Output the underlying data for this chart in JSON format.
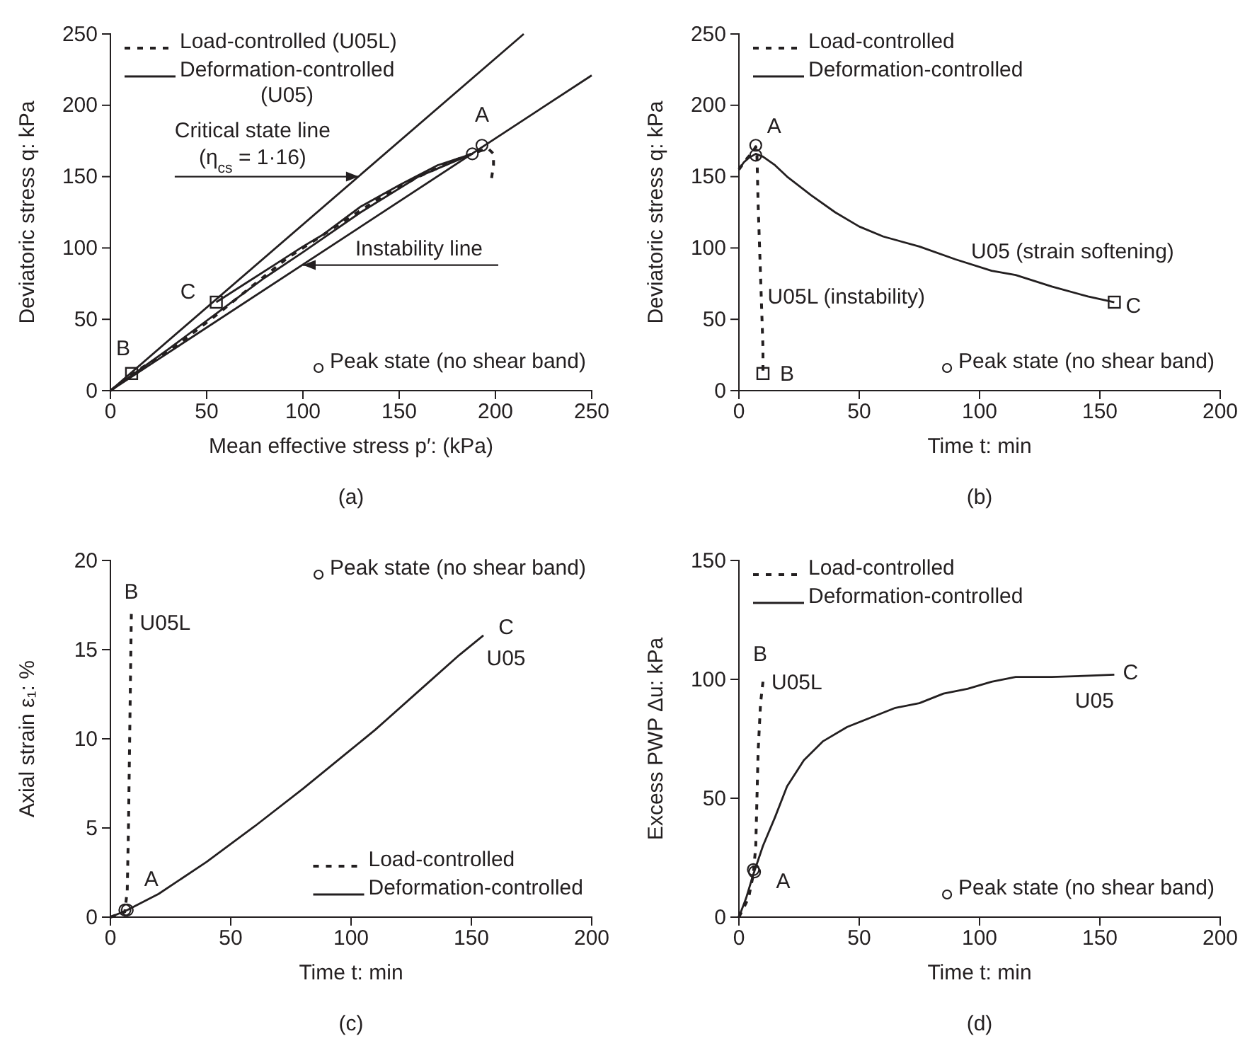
{
  "chart_data": [
    {
      "type": "line",
      "title": "(a)",
      "xlabel": "Mean effective stress p′: (kPa)",
      "ylabel": "Deviatoric stress q: kPa",
      "xlim": [
        0,
        250
      ],
      "ylim": [
        0,
        250
      ],
      "xticks": [
        0,
        50,
        100,
        150,
        200,
        250
      ],
      "yticks": [
        0,
        50,
        100,
        150,
        200,
        250
      ],
      "legend": "top left",
      "series": [
        {
          "name": "Load-controlled (U05L)",
          "color": "#231f20",
          "line_style": "dashed",
          "x": [
            0,
            15,
            30,
            55,
            78,
            92,
            108,
            125,
            140,
            160,
            180,
            190,
            196,
            199,
            199,
            198
          ],
          "values": [
            0,
            15,
            27,
            53,
            78,
            93,
            107,
            122,
            135,
            150,
            162,
            167,
            170,
            166,
            158,
            149
          ]
        },
        {
          "name": "Deformation-controlled (U05)",
          "color": "#231f20",
          "line_style": "solid",
          "x": [
            0,
            30,
            55,
            80,
            100,
            130,
            160,
            188,
            170,
            150,
            130,
            110,
            100,
            85,
            70,
            55
          ],
          "values": [
            0,
            29,
            54,
            79,
            97,
            125,
            150,
            166,
            158,
            144,
            129,
            109,
            101,
            88,
            75,
            62
          ]
        },
        {
          "color": "#231f20",
          "line_style": "solid",
          "x": [
            0,
            214.7
          ],
          "values": [
            0,
            250
          ]
        },
        {
          "color": "#231f20",
          "line_style": "solid",
          "x": [
            0,
            250
          ],
          "values": [
            0,
            221
          ]
        },
        {
          "type": "scatter",
          "name": "Peak state (no shear band)",
          "color": "#231f20",
          "marker": "circle",
          "x": [
            188,
            193
          ],
          "values": [
            166,
            172
          ]
        },
        {
          "type": "scatter",
          "color": "#231f20",
          "marker": "square",
          "x": [
            55,
            11
          ],
          "values": [
            62,
            12
          ]
        }
      ],
      "annotations": [
        {
          "text": "A",
          "x": 193,
          "y": 172
        },
        {
          "text": "B",
          "x": 11,
          "y": 12
        },
        {
          "text": "C",
          "x": 55,
          "y": 62
        },
        {
          "text": "Critical state line (η$_{cs}$ = 1·16)",
          "x": 129,
          "y": 150
        },
        {
          "text": "Instability line",
          "x": 100,
          "y": 88
        }
      ]
    },
    {
      "type": "line",
      "title": "(b)",
      "xlabel": "Time t: min",
      "ylabel": "Deviatoric stress q: kPa",
      "xlim": [
        0,
        200
      ],
      "ylim": [
        0,
        250
      ],
      "xticks": [
        0,
        50,
        100,
        150,
        200
      ],
      "yticks": [
        0,
        50,
        100,
        150,
        200,
        250
      ],
      "legend": "top left",
      "series": [
        {
          "name": "Load-controlled",
          "color": "#231f20",
          "line_style": "dashed",
          "x": [
            0,
            3,
            6,
            7,
            7.5,
            8,
            9,
            10,
            10
          ],
          "values": [
            155,
            162,
            168,
            171,
            165,
            130,
            80,
            30,
            14
          ]
        },
        {
          "name": "Deformation-controlled",
          "color": "#231f20",
          "line_style": "solid",
          "x": [
            0,
            2,
            4,
            7,
            10,
            15,
            20,
            30,
            40,
            50,
            60,
            75,
            90,
            105,
            115,
            130,
            145,
            156
          ],
          "values": [
            155,
            160,
            163,
            166,
            164,
            158,
            150,
            137,
            125,
            115,
            108,
            101,
            92,
            84,
            81,
            73,
            66,
            62
          ]
        },
        {
          "type": "scatter",
          "name": "Peak state (no shear band)",
          "color": "#231f20",
          "marker": "circle",
          "x": [
            7,
            7
          ],
          "values": [
            172,
            165
          ]
        },
        {
          "type": "scatter",
          "color": "#231f20",
          "marker": "square",
          "x": [
            156,
            10
          ],
          "values": [
            62,
            12
          ]
        }
      ],
      "annotations": [
        {
          "text": "A",
          "x": 7,
          "y": 172
        },
        {
          "text": "B",
          "x": 10,
          "y": 12
        },
        {
          "text": "C",
          "x": 156,
          "y": 62
        },
        {
          "text": "U05 (strain softening)",
          "x": 100,
          "y": 88
        },
        {
          "text": "U05L (instability)",
          "x": 9,
          "y": 66
        }
      ]
    },
    {
      "type": "line",
      "title": "(c)",
      "xlabel": "Time t: min",
      "ylabel": "Axial strain ε₁: %",
      "xlim": [
        0,
        200
      ],
      "ylim": [
        0,
        20
      ],
      "xticks": [
        0,
        50,
        100,
        150,
        200
      ],
      "yticks": [
        0,
        5,
        10,
        15,
        20
      ],
      "legend": "right",
      "series": [
        {
          "name": "Load-controlled",
          "color": "#231f20",
          "line_style": "dashed",
          "x": [
            0,
            6,
            7,
            7.5,
            8,
            8.5,
            8.7
          ],
          "values": [
            0,
            0.3,
            1.5,
            5,
            10,
            15,
            17
          ]
        },
        {
          "name": "Deformation-controlled",
          "color": "#231f20",
          "line_style": "solid",
          "x": [
            0,
            7,
            20,
            40,
            60,
            80,
            100,
            110,
            130,
            145,
            155
          ],
          "values": [
            0,
            0.4,
            1.3,
            3.1,
            5.1,
            7.2,
            9.4,
            10.5,
            12.9,
            14.7,
            15.8
          ]
        },
        {
          "type": "scatter",
          "name": "Peak state (no shear band)",
          "color": "#231f20",
          "marker": "circle",
          "x": [
            6,
            7
          ],
          "values": [
            0.4,
            0.4
          ]
        }
      ],
      "annotations": [
        {
          "text": "A",
          "x": 7,
          "y": 0.4
        },
        {
          "text": "B",
          "x": 8.7,
          "y": 17
        },
        {
          "text": "C",
          "x": 155,
          "y": 15.8
        },
        {
          "text": "U05L",
          "x": 8.7,
          "y": 17
        },
        {
          "text": "U05",
          "x": 155,
          "y": 15.8
        }
      ]
    },
    {
      "type": "line",
      "title": "(d)",
      "xlabel": "Time t: min",
      "ylabel": "Excess PWP Δu: kPa",
      "xlim": [
        0,
        200
      ],
      "ylim": [
        0,
        150
      ],
      "xticks": [
        0,
        50,
        100,
        150,
        200
      ],
      "yticks": [
        0,
        50,
        100,
        150
      ],
      "legend": "top left",
      "series": [
        {
          "name": "Load-controlled",
          "color": "#231f20",
          "line_style": "dashed",
          "x": [
            0,
            4,
            6,
            7,
            7.5,
            8,
            9,
            10
          ],
          "values": [
            0,
            8,
            18,
            30,
            50,
            70,
            90,
            99
          ]
        },
        {
          "name": "Deformation-controlled",
          "color": "#231f20",
          "line_style": "solid",
          "x": [
            0,
            3,
            6,
            10,
            15,
            20,
            27,
            35,
            45,
            55,
            65,
            75,
            85,
            95,
            105,
            115,
            130,
            145,
            156
          ],
          "values": [
            0,
            8,
            18,
            30,
            42,
            55,
            66,
            74,
            80,
            84,
            88,
            90,
            94,
            96,
            99,
            101,
            101,
            101.5,
            102
          ]
        },
        {
          "type": "scatter",
          "name": "Peak state (no shear band)",
          "color": "#231f20",
          "marker": "circle",
          "x": [
            6,
            6.5
          ],
          "values": [
            20,
            19
          ]
        }
      ],
      "annotations": [
        {
          "text": "A",
          "x": 6,
          "y": 20
        },
        {
          "text": "B",
          "x": 10,
          "y": 99
        },
        {
          "text": "C",
          "x": 156,
          "y": 102
        },
        {
          "text": "U05L",
          "x": 10,
          "y": 99
        },
        {
          "text": "U05",
          "x": 156,
          "y": 102
        }
      ]
    }
  ]
}
